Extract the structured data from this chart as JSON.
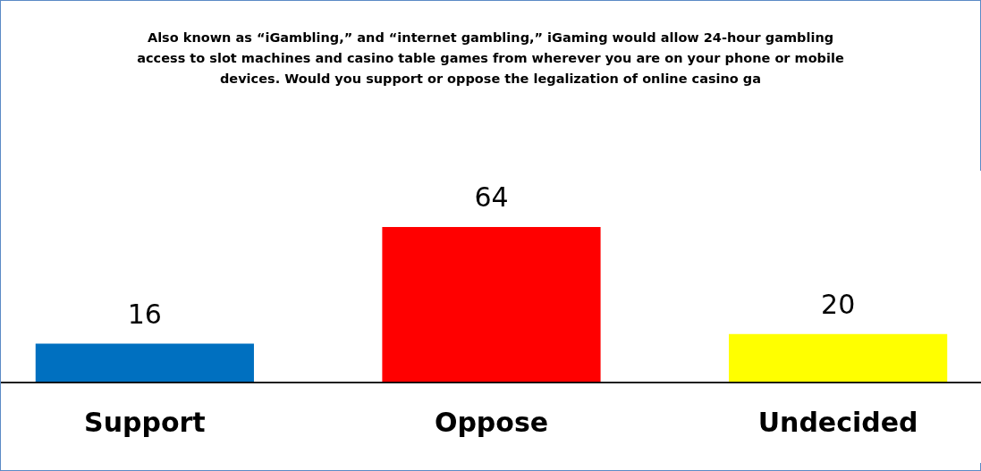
{
  "chart_data": {
    "type": "bar",
    "title": "Also known as “iGambling,” and “internet gambling,” iGaming would allow 24-hour gambling access to slot machines and casino table games from wherever you are on your phone or mobile devices. Would you support or oppose the legalization of online casino ga",
    "categories": [
      "Support",
      "Oppose",
      "Undecided"
    ],
    "values": [
      16,
      64,
      20
    ],
    "colors": [
      "#0070c0",
      "#ff0000",
      "#ffff00"
    ],
    "data_labels": true
  }
}
